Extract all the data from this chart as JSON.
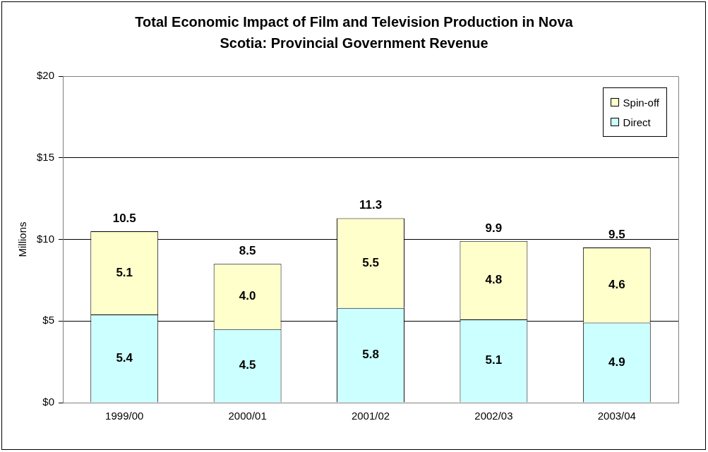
{
  "chart_data": {
    "type": "bar",
    "title": "Total Economic Impact of Film and Television Production in Nova Scotia: Provincial Government Revenue",
    "ylabel": "Millions",
    "categories": [
      "1999/00",
      "2000/01",
      "2001/02",
      "2002/03",
      "2003/04"
    ],
    "series": [
      {
        "name": "Direct",
        "color": "#ccffff",
        "values": [
          5.4,
          4.5,
          5.8,
          5.1,
          4.9
        ],
        "value_labels": [
          "5.4",
          "4.5",
          "5.8",
          "5.1",
          "4.9"
        ]
      },
      {
        "name": "Spin-off",
        "color": "#ffffcc",
        "values": [
          5.1,
          4.0,
          5.5,
          4.8,
          4.6
        ],
        "value_labels": [
          "5.1",
          "4.0",
          "5.5",
          "4.8",
          "4.6"
        ]
      }
    ],
    "stacked": true,
    "totals": [
      "10.5",
      "8.5",
      "11.3",
      "9.9",
      "9.5"
    ],
    "ylim": [
      0,
      20
    ],
    "yticks": [
      {
        "value": 0,
        "label": "$0"
      },
      {
        "value": 5,
        "label": "$5"
      },
      {
        "value": 10,
        "label": "$10"
      },
      {
        "value": 15,
        "label": "$15"
      },
      {
        "value": 20,
        "label": "$20"
      }
    ],
    "grid": "y",
    "legend": "top right"
  }
}
